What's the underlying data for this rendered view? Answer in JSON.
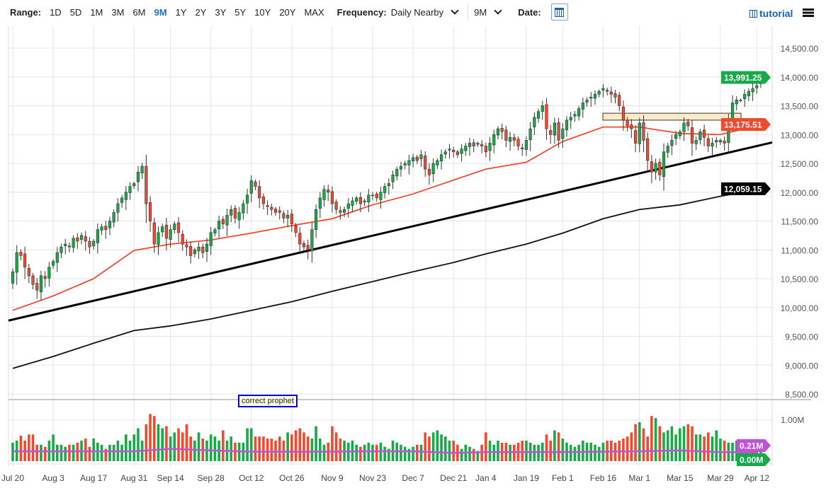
{
  "toolbar": {
    "range_label": "Range:",
    "ranges": [
      "1D",
      "5D",
      "1M",
      "3M",
      "6M",
      "9M",
      "1Y",
      "2Y",
      "3Y",
      "5Y",
      "10Y",
      "20Y",
      "MAX"
    ],
    "active_range": "9M",
    "frequency_label": "Frequency:",
    "frequency_value": "Daily Nearby",
    "period_value": "9M",
    "date_label": "Date:",
    "calendar_icon": "calendar-icon",
    "tutorial_label": "tutorial",
    "tutorial_icon": "film-icon",
    "menu_icon": "hamburger-menu-icon"
  },
  "annotation": "correct prophet",
  "colors": {
    "up": "#19a84a",
    "down": "#f04a2e",
    "ma_fast": "#f04a2e",
    "ma_slow": "#111111",
    "volume_ma": "#c052d8",
    "box": "#fbe6bf",
    "accent": "#1a73c8"
  },
  "chart_data": {
    "type": "candlestick",
    "price_axis": {
      "ticks": [
        "14,500.00",
        "14,000.00",
        "13,500.00",
        "13,000.00",
        "12,500.00",
        "12,000.00",
        "11,500.00",
        "11,000.00",
        "10,500.00",
        "10,000.00",
        "9,500.00",
        "9,000.00",
        "8,500.00"
      ],
      "ylim": [
        8500,
        14500
      ]
    },
    "x_ticks": [
      "Jul 20",
      "Aug 3",
      "Aug 17",
      "Aug 31",
      "Sep 14",
      "Sep 28",
      "Oct 12",
      "Oct 26",
      "Nov 9",
      "Nov 23",
      "Dec 7",
      "Dec 21",
      "Jan 4",
      "Jan 19",
      "Feb 1",
      "Feb 16",
      "Mar 1",
      "Mar 15",
      "Mar 29",
      "Apr 12"
    ],
    "closes": [
      10620,
      10950,
      10900,
      10700,
      10550,
      10400,
      10300,
      10550,
      10500,
      10700,
      10800,
      10950,
      11050,
      11100,
      11050,
      11200,
      11150,
      11250,
      11150,
      11050,
      11150,
      11350,
      11400,
      11350,
      11500,
      11650,
      11800,
      11900,
      12000,
      12100,
      12150,
      12350,
      12450,
      11800,
      11500,
      11100,
      11300,
      11400,
      11200,
      11350,
      11450,
      11300,
      11100,
      11050,
      10900,
      11000,
      11050,
      10950,
      11100,
      11300,
      11350,
      11500,
      11450,
      11600,
      11700,
      11550,
      11650,
      11800,
      11950,
      12200,
      12100,
      11900,
      11800,
      11750,
      11700,
      11650,
      11650,
      11550,
      11600,
      11450,
      11300,
      11100,
      11050,
      11000,
      11350,
      11700,
      11900,
      12050,
      12000,
      11800,
      11700,
      11650,
      11700,
      11800,
      11850,
      11900,
      11800,
      11850,
      11950,
      11950,
      11900,
      12000,
      12100,
      12150,
      12300,
      12400,
      12450,
      12500,
      12550,
      12600,
      12550,
      12650,
      12400,
      12300,
      12500,
      12550,
      12650,
      12700,
      12750,
      12700,
      12650,
      12750,
      12800,
      12850,
      12800,
      12850,
      12800,
      12700,
      12850,
      13000,
      13100,
      13050,
      12900,
      12950,
      12900,
      12800,
      12750,
      12900,
      13100,
      13300,
      13400,
      13500,
      13100,
      13000,
      13200,
      12900,
      13100,
      13250,
      13300,
      13350,
      13450,
      13550,
      13600,
      13650,
      13700,
      13750,
      13800,
      13750,
      13700,
      13650,
      13500,
      13250,
      13150,
      13100,
      12850,
      13200,
      12900,
      12550,
      12350,
      12500,
      12300,
      12700,
      12800,
      12900,
      13000,
      13050,
      13200,
      13150,
      12850,
      12900,
      13050,
      12950,
      12800,
      12850,
      12900,
      12900,
      12850,
      13250,
      13550,
      13600,
      13600,
      13700,
      13750,
      13800,
      13850,
      13991.25
    ],
    "volume_millions": [
      0.45,
      0.5,
      0.62,
      0.5,
      0.65,
      0.65,
      0.4,
      0.4,
      0.35,
      0.5,
      0.65,
      0.4,
      0.4,
      0.35,
      0.4,
      0.4,
      0.45,
      0.5,
      0.55,
      0.35,
      0.55,
      0.45,
      0.4,
      0.3,
      0.4,
      0.4,
      0.5,
      0.4,
      0.65,
      0.5,
      0.65,
      0.8,
      0.5,
      0.9,
      1.15,
      1.1,
      0.9,
      0.8,
      0.85,
      0.6,
      0.7,
      0.8,
      0.7,
      0.9,
      0.6,
      0.5,
      0.7,
      0.55,
      0.5,
      0.65,
      0.6,
      0.5,
      0.75,
      0.5,
      0.6,
      0.45,
      0.45,
      0.45,
      0.8,
      0.8,
      0.6,
      0.6,
      0.6,
      0.55,
      0.55,
      0.5,
      0.6,
      0.5,
      0.7,
      0.65,
      0.75,
      0.8,
      0.7,
      0.6,
      0.55,
      0.85,
      0.55,
      0.4,
      0.45,
      0.85,
      0.7,
      0.55,
      0.5,
      0.45,
      0.5,
      0.4,
      0.35,
      0.4,
      0.45,
      0.4,
      0.4,
      0.45,
      0.35,
      0.3,
      0.5,
      0.45,
      0.4,
      0.35,
      0.3,
      0.35,
      0.4,
      0.4,
      0.7,
      0.6,
      0.7,
      0.75,
      0.65,
      0.6,
      0.5,
      0.5,
      0.4,
      0.3,
      0.4,
      0.35,
      0.3,
      0.25,
      0.4,
      0.7,
      0.5,
      0.4,
      0.5,
      0.45,
      0.45,
      0.4,
      0.4,
      0.45,
      0.5,
      0.5,
      0.45,
      0.4,
      0.4,
      0.45,
      0.65,
      0.5,
      0.75,
      0.7,
      0.55,
      0.45,
      0.4,
      0.35,
      0.4,
      0.5,
      0.45,
      0.45,
      0.4,
      0.35,
      0.45,
      0.5,
      0.5,
      0.45,
      0.5,
      0.55,
      0.6,
      0.7,
      0.9,
      0.95,
      0.8,
      0.6,
      1.1,
      1.05,
      0.85,
      0.7,
      0.75,
      0.85,
      0.65,
      0.8,
      0.85,
      0.9,
      0.85,
      0.65,
      0.65,
      0.6,
      0.7,
      0.6,
      0.75,
      0.55,
      0.5,
      0.45,
      0.45,
      0.5,
      0.45,
      0.4,
      0.5,
      0.45,
      0.5,
      0.45
    ],
    "ma_fast_at_ticks": [
      9950,
      10200,
      10500,
      10990,
      11100,
      11170,
      11290,
      11420,
      11540,
      11780,
      11970,
      12210,
      12400,
      12520,
      12880,
      13130,
      13130,
      13020,
      13000,
      13150
    ],
    "ma_slow_at_ticks": [
      8943,
      9150,
      9380,
      9600,
      9680,
      9800,
      9950,
      10100,
      10280,
      10450,
      10620,
      10780,
      10930,
      11100,
      11290,
      11540,
      11700,
      11780,
      11930,
      12040
    ],
    "volume_ma_at_ticks": [
      0.24,
      0.24,
      0.24,
      0.24,
      0.3,
      0.26,
      0.23,
      0.23,
      0.23,
      0.24,
      0.24,
      0.2,
      0.22,
      0.22,
      0.22,
      0.23,
      0.24,
      0.26,
      0.22,
      0.21
    ],
    "trendline": {
      "start": {
        "date": "Jul 20",
        "value": 9790
      },
      "end": {
        "date": "Apr 12",
        "value": 12800
      }
    },
    "resistance_zone": {
      "from": "Feb 16",
      "to": "Apr 6",
      "low": 13250,
      "high": 13370
    },
    "last_price_label": "13,991.25",
    "ma_fast_label": "13,175.51",
    "ma_slow_label": "12,059.15",
    "volume_axis_label": "1.00M",
    "volume_ma_label": "0.21M",
    "volume_zero_label": "0.00M"
  }
}
